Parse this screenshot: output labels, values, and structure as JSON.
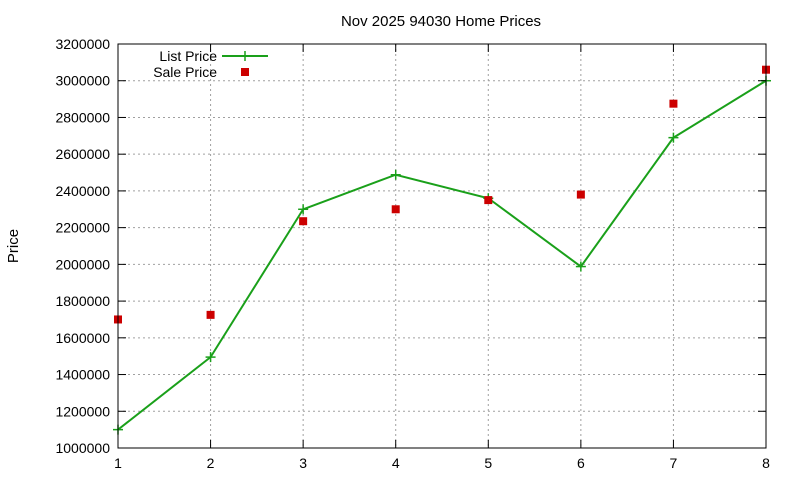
{
  "chart_data": {
    "type": "line",
    "title": "Nov 2025 94030 Home Prices",
    "xlabel": "",
    "ylabel": "Price",
    "x": [
      1,
      2,
      3,
      4,
      5,
      6,
      7,
      8
    ],
    "xlim": [
      1,
      8
    ],
    "ylim": [
      1000000,
      3200000
    ],
    "xticks": [
      1,
      2,
      3,
      4,
      5,
      6,
      7,
      8
    ],
    "yticks": [
      1000000,
      1200000,
      1400000,
      1600000,
      1800000,
      2000000,
      2200000,
      2400000,
      2600000,
      2800000,
      3000000,
      3200000
    ],
    "grid": true,
    "legend_position": "top-left",
    "series": [
      {
        "name": "List Price",
        "kind": "line",
        "marker": "plus",
        "color": "#1aa01a",
        "values": [
          1100000,
          1495000,
          2300000,
          2488000,
          2360000,
          1988000,
          2690000,
          3000000
        ]
      },
      {
        "name": "Sale Price",
        "kind": "scatter",
        "marker": "square",
        "color": "#cc0000",
        "values": [
          1700000,
          1725000,
          2235000,
          2300000,
          2350000,
          2380000,
          2875000,
          3060000
        ]
      }
    ]
  }
}
